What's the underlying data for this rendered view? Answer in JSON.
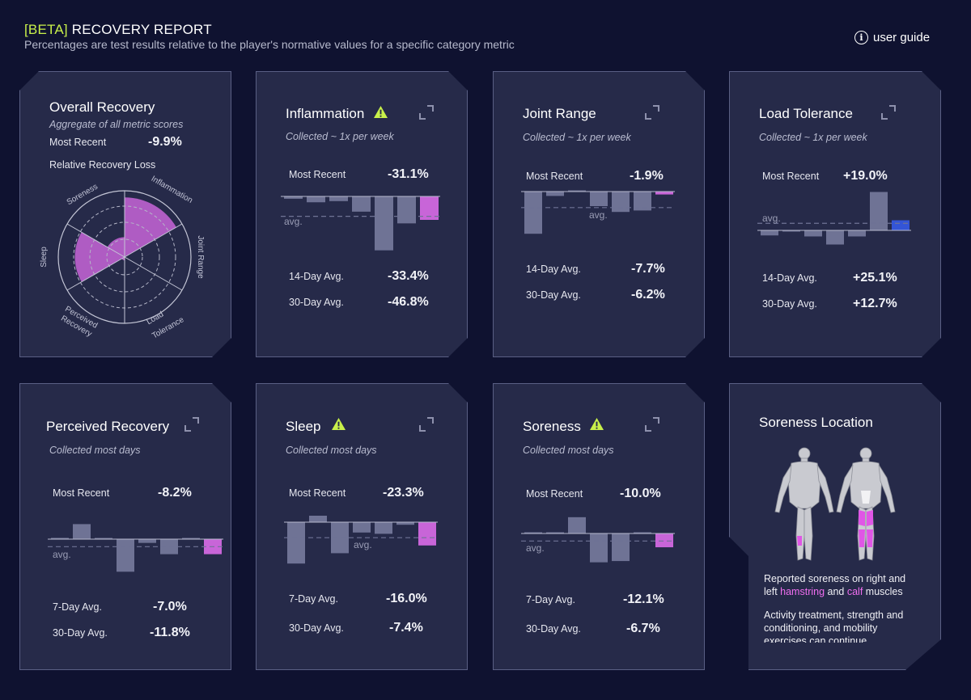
{
  "header": {
    "beta": "[BETA]",
    "title": "RECOVERY REPORT",
    "subtitle": "Percentages are test results relative to the player's normative values for a specific category metric",
    "guide_label": "user guide",
    "guide_icon": "info-icon"
  },
  "overall": {
    "title": "Overall Recovery",
    "subtitle": "Aggregate of all metric scores",
    "most_recent_label": "Most Recent",
    "most_recent_value": "-9.9%",
    "radar_title": "Relative Recovery Loss",
    "radar": {
      "labels": {
        "soreness": "Soreness",
        "inflammation": "Inflammation",
        "joint": "Joint Range",
        "sleep": "Sleep",
        "perceived_1": "Perceived",
        "perceived_2": "Recovery",
        "load_1": "Load",
        "load_2": "Tolerance"
      },
      "segments": [
        {
          "axis": "Inflammation",
          "level": 0.9
        },
        {
          "axis": "Joint Range",
          "level": 0
        },
        {
          "axis": "Load Tolerance",
          "level": 0
        },
        {
          "axis": "Perceived Recovery",
          "level": 0.05
        },
        {
          "axis": "Sleep",
          "level": 0.75
        },
        {
          "axis": "Soreness",
          "level": 0.3
        }
      ],
      "color": "#c865d8"
    }
  },
  "inflammation": {
    "title": "Inflammation",
    "subtitle": "Collected ~ 1x per week",
    "most_recent_label": "Most Recent",
    "most_recent_value": "-31.1%",
    "avg_label": "avg.",
    "stat1_label": "14-Day Avg.",
    "stat1_value": "-33.4%",
    "stat2_label": "30-Day Avg.",
    "stat2_value": "-46.8%",
    "bars": [
      -2,
      -5,
      -4,
      -13,
      -46,
      -23,
      -20
    ],
    "avg": -17,
    "highlight_color": "#c865d8"
  },
  "joint": {
    "title": "Joint Range",
    "subtitle": "Collected ~ 1x per week",
    "most_recent_label": "Most Recent",
    "most_recent_value": "-1.9%",
    "avg_label": "avg.",
    "stat1_label": "14-Day Avg.",
    "stat1_value": "-7.7%",
    "stat2_label": "30-Day Avg.",
    "stat2_value": "-6.2%",
    "bars": [
      -29,
      -3,
      0,
      -10,
      -14,
      -13,
      -2
    ],
    "avg": -11,
    "highlight_color": "#c865d8"
  },
  "load": {
    "title": "Load Tolerance",
    "subtitle": "Collected ~ 1x per week",
    "most_recent_label": "Most Recent",
    "most_recent_value": "+19.0%",
    "avg_label": "avg.",
    "stat1_label": "14-Day Avg.",
    "stat1_value": "+25.1%",
    "stat2_label": "30-Day Avg.",
    "stat2_value": "+12.7%",
    "bars": [
      -5,
      -1,
      -6,
      -14,
      -6,
      38,
      10
    ],
    "avg": 7,
    "highlight_color": "#3455d6"
  },
  "perceived": {
    "title": "Perceived Recovery",
    "subtitle": "Collected most days",
    "most_recent_label": "Most Recent",
    "most_recent_value": "-8.2%",
    "avg_label": "avg.",
    "stat1_label": "7-Day Avg.",
    "stat1_value": "-7.0%",
    "stat2_label": "30-Day Avg.",
    "stat2_value": "-11.8%",
    "bars": [
      1,
      12,
      0,
      -26,
      -3,
      -12,
      0,
      -12
    ],
    "avg": -6,
    "highlight_color": "#c865d8"
  },
  "sleep": {
    "title": "Sleep",
    "subtitle": "Collected most days",
    "most_recent_label": "Most Recent",
    "most_recent_value": "-23.3%",
    "avg_label": "avg.",
    "stat1_label": "7-Day Avg.",
    "stat1_value": "-16.0%",
    "stat2_label": "30-Day Avg.",
    "stat2_value": "-7.4%",
    "bars": [
      -32,
      5,
      -24,
      -8,
      -9,
      -2,
      -18
    ],
    "avg": -12,
    "highlight_color": "#c865d8"
  },
  "soreness": {
    "title": "Soreness",
    "subtitle": "Collected most days",
    "most_recent_label": "Most Recent",
    "most_recent_value": "-10.0%",
    "avg_label": "avg.",
    "stat1_label": "7-Day Avg.",
    "stat1_value": "-12.1%",
    "stat2_label": "30-Day Avg.",
    "stat2_value": "-6.7%",
    "bars": [
      0,
      0,
      13,
      -23,
      -22,
      0,
      -11
    ],
    "avg": -6,
    "highlight_color": "#c865d8"
  },
  "location": {
    "title": "Soreness Location",
    "desc1_pre": "Reported soreness on right and left ",
    "desc1_hl1": "hamstring",
    "desc1_mid": " and ",
    "desc1_hl2": "calf",
    "desc1_post": " muscles",
    "desc2": "Activity treatment, strength and conditioning, and mobility exercises can continue"
  },
  "colors": {
    "background": "#0f1230",
    "card": "#262a49",
    "bar": "#6f7395",
    "accent": "#c8f04a",
    "warn": "#c8f04a"
  }
}
